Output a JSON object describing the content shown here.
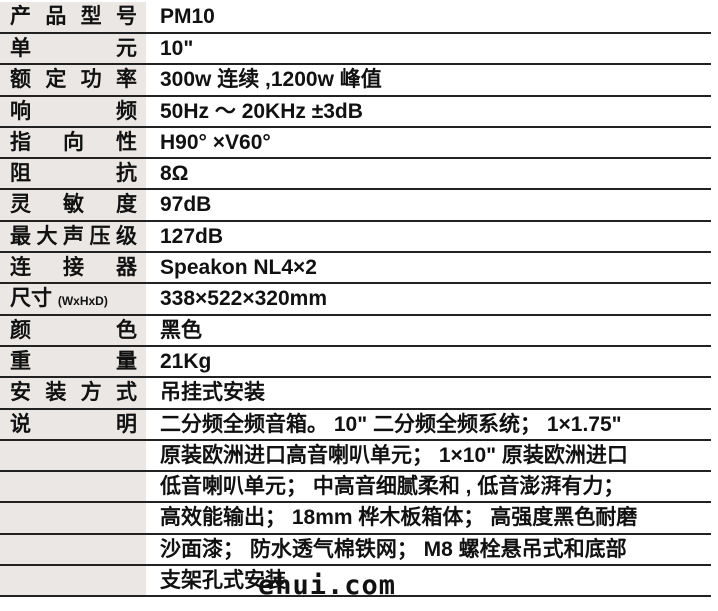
{
  "specs": [
    {
      "label": "产品型号",
      "value": "PM10"
    },
    {
      "label": "单元",
      "value": "10\""
    },
    {
      "label": "额定功率",
      "value": "300w 连续 ,1200w 峰值"
    },
    {
      "label": "响频",
      "value": "50Hz ～ 20KHz ±3dB"
    },
    {
      "label": "指向性",
      "value": "H90° ×V60°"
    },
    {
      "label": "阻抗",
      "value": "8Ω"
    },
    {
      "label": "灵敏度",
      "value": "97dB"
    },
    {
      "label": "最大声压级",
      "value": "127dB"
    },
    {
      "label": "连接器",
      "value": "Speakon NL4×2"
    },
    {
      "label": "尺寸",
      "label_suffix": "(WxHxD)",
      "value": "338×522×320mm"
    },
    {
      "label": "颜色",
      "value": "黑色"
    },
    {
      "label": "重量",
      "value": "21Kg"
    },
    {
      "label": "安装方式",
      "value": "吊挂式安装"
    },
    {
      "label": "说明",
      "value": "二分频全频音箱。 10\" 二分频全频系统； 1×1.75\""
    }
  ],
  "description_lines": [
    "原装欧洲进口高音喇叭单元； 1×10\" 原装欧洲进口",
    "低音喇叭单元； 中高音细腻柔和 , 低音澎湃有力；",
    "高效能输出； 18mm 桦木板箱体； 高强度黑色耐磨",
    "沙面漆； 防水透气棉铁网； M8 螺栓悬吊式和底部",
    "支架孔式安装"
  ],
  "watermark": "ehui.com"
}
